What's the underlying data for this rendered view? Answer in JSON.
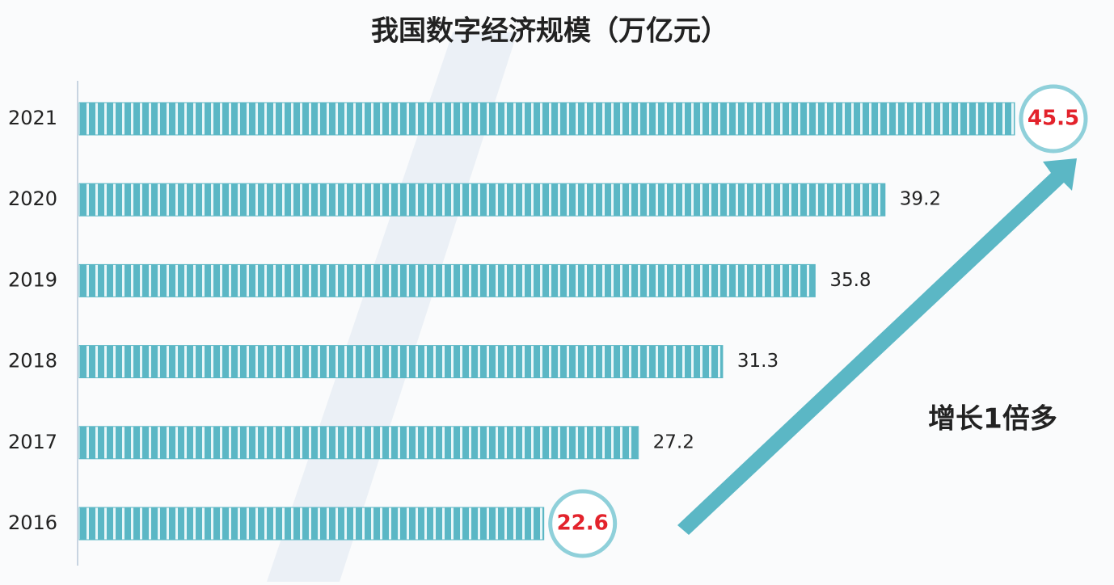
{
  "chart_data": {
    "type": "bar",
    "orientation": "horizontal",
    "title": "我国数字经济规模（万亿元）",
    "categories": [
      "2021",
      "2020",
      "2019",
      "2018",
      "2017",
      "2016"
    ],
    "values": [
      45.5,
      39.2,
      35.8,
      31.3,
      27.2,
      22.6
    ],
    "color": "#5bb7c5",
    "annotation": "增长1倍多"
  }
}
